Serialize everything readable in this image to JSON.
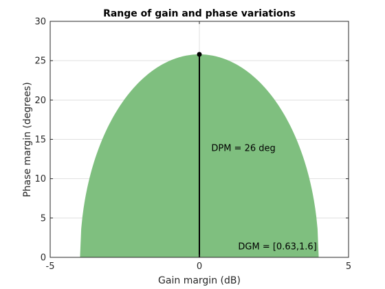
{
  "chart_data": {
    "type": "area",
    "title": "Range of gain and phase variations",
    "xlabel": "Gain margin (dB)",
    "ylabel": "Phase margin (degrees)",
    "xlim": [
      -5,
      5
    ],
    "ylim": [
      0,
      30
    ],
    "xticks": [
      "-5",
      "0",
      "5"
    ],
    "yticks": [
      "0",
      "5",
      "10",
      "15",
      "20",
      "25",
      "30"
    ],
    "grid": true,
    "fill_color": "#7fbf7f",
    "region": {
      "description_shape": "elliptical disk region",
      "x": [
        -4.0,
        -3.8,
        -3.5,
        -3.0,
        -2.5,
        -2.0,
        -1.5,
        -1.0,
        -0.5,
        0.0,
        0.5,
        1.0,
        1.5,
        2.0,
        2.5,
        3.0,
        3.5,
        3.8,
        4.0
      ],
      "y": [
        0.0,
        8.05,
        12.49,
        17.04,
        20.15,
        22.36,
        23.92,
        24.99,
        25.6,
        25.8,
        25.6,
        24.99,
        23.92,
        22.36,
        20.15,
        17.04,
        12.49,
        8.05,
        0.0
      ]
    },
    "marker": {
      "x": 0,
      "y": 25.8
    },
    "annotations": {
      "dpm": {
        "text": "DPM = 26 deg",
        "x": 0.4,
        "y": 13.5
      },
      "dgm": {
        "text": "DGM = [0.63,1.6]",
        "x": 1.3,
        "y": 1.0
      }
    }
  }
}
